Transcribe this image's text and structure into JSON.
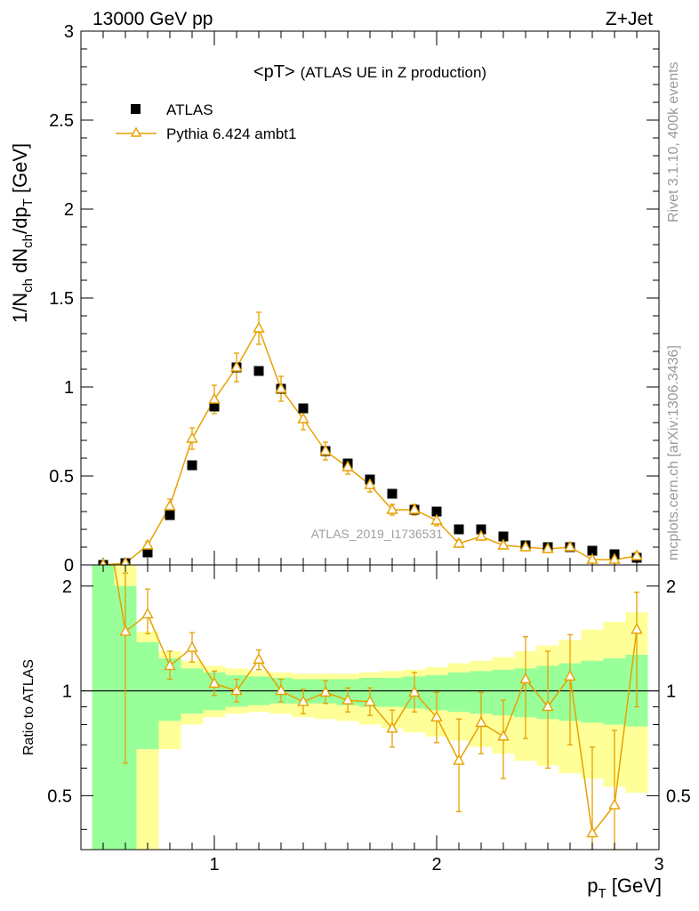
{
  "header": {
    "left": "13000 GeV pp",
    "right": "Z+Jet"
  },
  "side_labels": {
    "rivet": "Rivet 3.1.10,  400k events",
    "mcplots": "mcplots.cern.ch [arXiv:1306.3436]"
  },
  "watermark": "ATLAS_2019_I1736531",
  "colors": {
    "atlas": "#000000",
    "pythia": "#e8a000",
    "band_inner": "#99ff99",
    "band_outer": "#ffff99"
  },
  "chart_data": [
    {
      "type": "scatter",
      "panel": "main",
      "title": "<pT>",
      "subtitle": "(ATLAS UE in Z production)",
      "ylabel": {
        "main": "1/N",
        "sub1": "ch",
        "mid": " dN",
        "sub2": "ch",
        "end": "/dp",
        "sub3": "T",
        "unit": " [GeV]"
      },
      "xlim": [
        0.4,
        3.0
      ],
      "ylim": [
        0,
        3
      ],
      "yticks": [
        "0",
        "0.5",
        "1",
        "1.5",
        "2",
        "2.5",
        "3"
      ],
      "legend": [
        "ATLAS",
        "Pythia 6.424 ambt1"
      ],
      "legend_position": "top-left",
      "x": [
        0.5,
        0.6,
        0.7,
        0.8,
        0.9,
        1.0,
        1.1,
        1.2,
        1.3,
        1.4,
        1.5,
        1.6,
        1.7,
        1.8,
        1.9,
        2.0,
        2.1,
        2.2,
        2.3,
        2.4,
        2.5,
        2.6,
        2.7,
        2.8,
        2.9
      ],
      "series": [
        {
          "name": "ATLAS",
          "values": [
            0.0,
            0.01,
            0.07,
            0.28,
            0.56,
            0.89,
            1.11,
            1.09,
            0.99,
            0.88,
            0.64,
            0.57,
            0.48,
            0.4,
            0.31,
            0.3,
            0.2,
            0.2,
            0.16,
            0.11,
            0.1,
            0.1,
            0.08,
            0.06,
            0.04
          ]
        },
        {
          "name": "Pythia 6.424 ambt1",
          "values": [
            0.0,
            0.01,
            0.11,
            0.33,
            0.71,
            0.93,
            1.11,
            1.33,
            0.99,
            0.82,
            0.64,
            0.55,
            0.45,
            0.31,
            0.31,
            0.25,
            0.12,
            0.16,
            0.11,
            0.1,
            0.09,
            0.1,
            0.03,
            0.03,
            0.05
          ],
          "errors": [
            0.0,
            0.01,
            0.02,
            0.04,
            0.06,
            0.08,
            0.08,
            0.09,
            0.07,
            0.06,
            0.05,
            0.04,
            0.04,
            0.03,
            0.03,
            0.03,
            0.02,
            0.02,
            0.02,
            0.02,
            0.02,
            0.02,
            0.01,
            0.01,
            0.02
          ]
        }
      ]
    },
    {
      "type": "scatter",
      "panel": "ratio",
      "ylabel": "Ratio to ATLAS",
      "xlabel": "p",
      "xlabel_sub": "T",
      "xlabel_unit": " [GeV]",
      "xlim": [
        0.4,
        3.0
      ],
      "ylim": [
        0.35,
        2.3
      ],
      "xticks": [
        "1",
        "2",
        "3"
      ],
      "yticks": [
        "0.5",
        "1",
        "2"
      ],
      "reference_line": 1,
      "bands": {
        "x_edges": [
          0.45,
          0.55,
          0.65,
          0.75,
          0.85,
          0.95,
          1.05,
          1.15,
          1.25,
          1.35,
          1.45,
          1.55,
          1.65,
          1.75,
          1.85,
          1.95,
          2.05,
          2.15,
          2.25,
          2.35,
          2.45,
          2.55,
          2.65,
          2.75,
          2.85,
          2.95
        ],
        "inner_lo": [
          0.35,
          0.35,
          0.68,
          0.82,
          0.86,
          0.88,
          0.9,
          0.91,
          0.92,
          0.92,
          0.92,
          0.91,
          0.9,
          0.9,
          0.89,
          0.88,
          0.87,
          0.86,
          0.85,
          0.84,
          0.83,
          0.82,
          0.81,
          0.8,
          0.79
        ],
        "inner_hi": [
          2.3,
          2.0,
          1.38,
          1.24,
          1.16,
          1.13,
          1.11,
          1.1,
          1.09,
          1.08,
          1.08,
          1.08,
          1.09,
          1.09,
          1.1,
          1.11,
          1.13,
          1.14,
          1.15,
          1.16,
          1.18,
          1.2,
          1.22,
          1.24,
          1.27
        ],
        "outer_lo": [
          0.35,
          0.35,
          0.35,
          0.68,
          0.8,
          0.84,
          0.86,
          0.87,
          0.86,
          0.84,
          0.83,
          0.82,
          0.8,
          0.78,
          0.76,
          0.74,
          0.72,
          0.69,
          0.66,
          0.63,
          0.61,
          0.58,
          0.56,
          0.53,
          0.51
        ],
        "outer_hi": [
          2.3,
          2.3,
          1.48,
          1.3,
          1.22,
          1.18,
          1.16,
          1.14,
          1.13,
          1.12,
          1.12,
          1.12,
          1.13,
          1.14,
          1.15,
          1.17,
          1.2,
          1.22,
          1.25,
          1.3,
          1.35,
          1.4,
          1.5,
          1.58,
          1.68
        ]
      },
      "x": [
        0.6,
        0.7,
        0.8,
        0.9,
        1.0,
        1.1,
        1.2,
        1.3,
        1.4,
        1.5,
        1.6,
        1.7,
        1.8,
        1.9,
        2.0,
        2.1,
        2.2,
        2.3,
        2.4,
        2.5,
        2.6,
        2.7,
        2.8,
        2.9
      ],
      "series": [
        {
          "name": "Pythia 6.424 ambt1",
          "values": [
            1.48,
            1.66,
            1.18,
            1.33,
            1.05,
            1.0,
            1.23,
            1.0,
            0.93,
            0.99,
            0.94,
            0.93,
            0.78,
            0.99,
            0.84,
            0.63,
            0.81,
            0.74,
            1.08,
            0.9,
            1.1,
            0.39,
            0.47,
            1.5
          ],
          "err_lo": [
            0.86,
            0.2,
            0.1,
            0.12,
            0.08,
            0.07,
            0.08,
            0.07,
            0.07,
            0.07,
            0.07,
            0.08,
            0.09,
            0.12,
            0.13,
            0.18,
            0.15,
            0.18,
            0.35,
            0.3,
            0.4,
            0.3,
            0.3,
            0.6
          ],
          "err_hi": [
            0.7,
            0.3,
            0.12,
            0.14,
            0.09,
            0.08,
            0.08,
            0.08,
            0.08,
            0.08,
            0.08,
            0.09,
            0.1,
            0.14,
            0.15,
            0.2,
            0.18,
            0.2,
            0.35,
            0.4,
            0.35,
            0.3,
            0.3,
            0.42
          ]
        }
      ]
    }
  ]
}
